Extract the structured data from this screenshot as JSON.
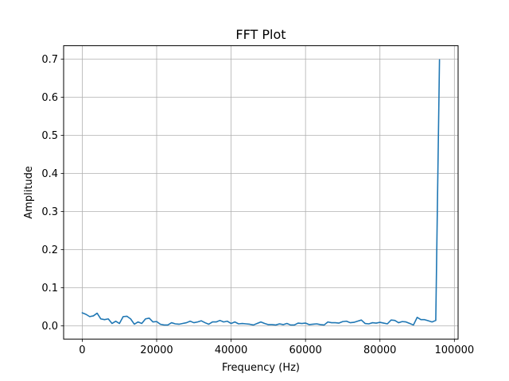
{
  "chart_data": {
    "type": "line",
    "title": "FFT Plot",
    "xlabel": "Frequency (Hz)",
    "ylabel": "Amplitude",
    "xlim": [
      -5000,
      101000
    ],
    "ylim": [
      -0.035,
      0.735
    ],
    "xticks": [
      0,
      20000,
      40000,
      60000,
      80000,
      100000
    ],
    "yticks": [
      0.0,
      0.1,
      0.2,
      0.3,
      0.4,
      0.5,
      0.6,
      0.7
    ],
    "grid": true,
    "line_color": "#1f77b4",
    "series": [
      {
        "x": [
          0,
          1000,
          2000,
          3000,
          4000,
          5000,
          6000,
          7000,
          8000,
          9000,
          10000,
          11000,
          12000,
          13000,
          14000,
          15000,
          16000,
          17000,
          18000,
          19000,
          20000,
          21000,
          22000,
          23000,
          24000,
          25000,
          26000,
          27000,
          28000,
          29000,
          30000,
          31000,
          32000,
          33000,
          34000,
          35000,
          36000,
          37000,
          38000,
          39000,
          40000,
          41000,
          42000,
          43000,
          44000,
          45000,
          46000,
          47000,
          48000,
          49000,
          50000,
          51000,
          52000,
          53000,
          54000,
          55000,
          56000,
          57000,
          58000,
          59000,
          60000,
          61000,
          62000,
          63000,
          64000,
          65000,
          66000,
          67000,
          68000,
          69000,
          70000,
          71000,
          72000,
          73000,
          74000,
          75000,
          76000,
          77000,
          78000,
          79000,
          80000,
          81000,
          82000,
          83000,
          84000,
          85000,
          86000,
          87000,
          88000,
          89000,
          90000,
          91000,
          92000,
          93000,
          94000,
          95000,
          96000
        ],
        "y": [
          0.034,
          0.03,
          0.024,
          0.026,
          0.033,
          0.018,
          0.016,
          0.018,
          0.006,
          0.012,
          0.006,
          0.024,
          0.025,
          0.018,
          0.004,
          0.01,
          0.006,
          0.018,
          0.02,
          0.01,
          0.011,
          0.004,
          0.002,
          0.002,
          0.008,
          0.005,
          0.004,
          0.006,
          0.008,
          0.012,
          0.008,
          0.01,
          0.013,
          0.008,
          0.004,
          0.01,
          0.01,
          0.014,
          0.01,
          0.012,
          0.006,
          0.01,
          0.005,
          0.006,
          0.005,
          0.004,
          0.002,
          0.006,
          0.01,
          0.006,
          0.003,
          0.003,
          0.002,
          0.005,
          0.003,
          0.006,
          0.002,
          0.002,
          0.007,
          0.006,
          0.007,
          0.003,
          0.004,
          0.005,
          0.003,
          0.002,
          0.01,
          0.008,
          0.008,
          0.007,
          0.011,
          0.012,
          0.008,
          0.009,
          0.012,
          0.015,
          0.006,
          0.005,
          0.008,
          0.007,
          0.009,
          0.007,
          0.005,
          0.015,
          0.014,
          0.008,
          0.011,
          0.01,
          0.006,
          0.002,
          0.022,
          0.016,
          0.016,
          0.013,
          0.01,
          0.014,
          0.698
        ]
      }
    ]
  }
}
